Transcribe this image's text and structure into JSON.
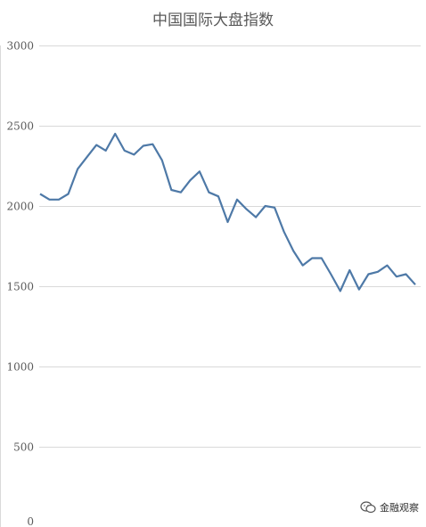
{
  "chart_data": {
    "type": "line",
    "title": "中国国际大盘指数",
    "xlabel": "",
    "ylabel": "",
    "ylim": [
      0,
      3000
    ],
    "yticks": [
      0,
      500,
      1000,
      1500,
      2000,
      2500,
      3000
    ],
    "grid": true,
    "series": [
      {
        "color": "#4e79a7",
        "values": [
          2075,
          2040,
          2040,
          2075,
          2230,
          2305,
          2380,
          2345,
          2450,
          2345,
          2320,
          2375,
          2385,
          2285,
          2100,
          2085,
          2160,
          2215,
          2085,
          2060,
          1900,
          2040,
          1980,
          1930,
          2000,
          1990,
          1840,
          1720,
          1630,
          1675,
          1675,
          1575,
          1470,
          1600,
          1480,
          1575,
          1590,
          1630,
          1560,
          1575,
          1510
        ]
      }
    ]
  },
  "watermark": {
    "text": "金融观察",
    "icon": "wechat-icon"
  }
}
